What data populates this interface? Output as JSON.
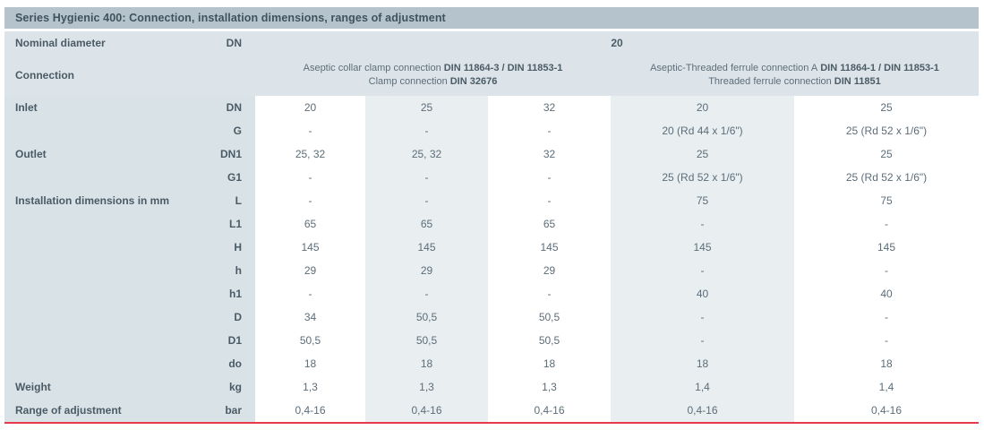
{
  "title": "Series Hygienic 400: Connection, installation dimensions, ranges of adjustment",
  "header": {
    "nominal_diameter_label": "Nominal diameter",
    "nominal_diameter_symbol": "DN",
    "nominal_diameter_value": "20",
    "connection_label": "Connection",
    "groups": [
      {
        "line1_text": "Aseptic collar clamp connection",
        "line1_din": "DIN 11864-3 / DIN 11853-1",
        "line2_text": "Clamp connection",
        "line2_din": "DIN 32676"
      },
      {
        "line1_text": "Aseptic-Threaded ferrule connection A",
        "line1_din": "DIN 11864-1 / DIN 11853-1",
        "line2_text": "Threaded ferrule connection",
        "line2_din": "DIN 11851"
      }
    ]
  },
  "rows": [
    {
      "label": "Inlet",
      "symbol": "DN",
      "values": [
        "20",
        "25",
        "32",
        "20",
        "25"
      ]
    },
    {
      "label": "",
      "symbol": "G",
      "values": [
        "-",
        "-",
        "-",
        "20 (Rd 44 x 1/6\")",
        "25 (Rd 52 x 1/6\")"
      ]
    },
    {
      "label": "Outlet",
      "symbol": "DN1",
      "values": [
        "25, 32",
        "25, 32",
        "32",
        "25",
        "25"
      ]
    },
    {
      "label": "",
      "symbol": "G1",
      "values": [
        "-",
        "-",
        "-",
        "25 (Rd 52 x 1/6\")",
        "25 (Rd 52 x 1/6\")"
      ]
    },
    {
      "label": "Installation dimensions in mm",
      "symbol": "L",
      "values": [
        "-",
        "-",
        "-",
        "75",
        "75"
      ]
    },
    {
      "label": "",
      "symbol": "L1",
      "values": [
        "65",
        "65",
        "65",
        "-",
        "-"
      ]
    },
    {
      "label": "",
      "symbol": "H",
      "values": [
        "145",
        "145",
        "145",
        "145",
        "145"
      ]
    },
    {
      "label": "",
      "symbol": "h",
      "values": [
        "29",
        "29",
        "29",
        "-",
        "-"
      ]
    },
    {
      "label": "",
      "symbol": "h1",
      "values": [
        "-",
        "-",
        "-",
        "40",
        "40"
      ]
    },
    {
      "label": "",
      "symbol": "D",
      "values": [
        "34",
        "50,5",
        "50,5",
        "-",
        "-"
      ]
    },
    {
      "label": "",
      "symbol": "D1",
      "values": [
        "50,5",
        "50,5",
        "50,5",
        "-",
        "-"
      ]
    },
    {
      "label": "",
      "symbol": "do",
      "values": [
        "18",
        "18",
        "18",
        "18",
        "18"
      ]
    },
    {
      "label": "Weight",
      "symbol": "kg",
      "values": [
        "1,3",
        "1,3",
        "1,3",
        "1,4",
        "1,4"
      ]
    },
    {
      "label": "Range of adjustment",
      "symbol": "bar",
      "values": [
        "0,4-16",
        "0,4-16",
        "0,4-16",
        "0,4-16",
        "0,4-16"
      ]
    }
  ],
  "colors": {
    "titlebar_bg": "#b4c3cc",
    "header_bg": "#dce4e9",
    "labelcol_bg": "#d9e2e7",
    "shade_bg": "#e9eef1",
    "title_text": "#42525d",
    "label_text": "#4a5b66",
    "value_text": "#5c6d79",
    "rule_red": "#e8394b"
  }
}
